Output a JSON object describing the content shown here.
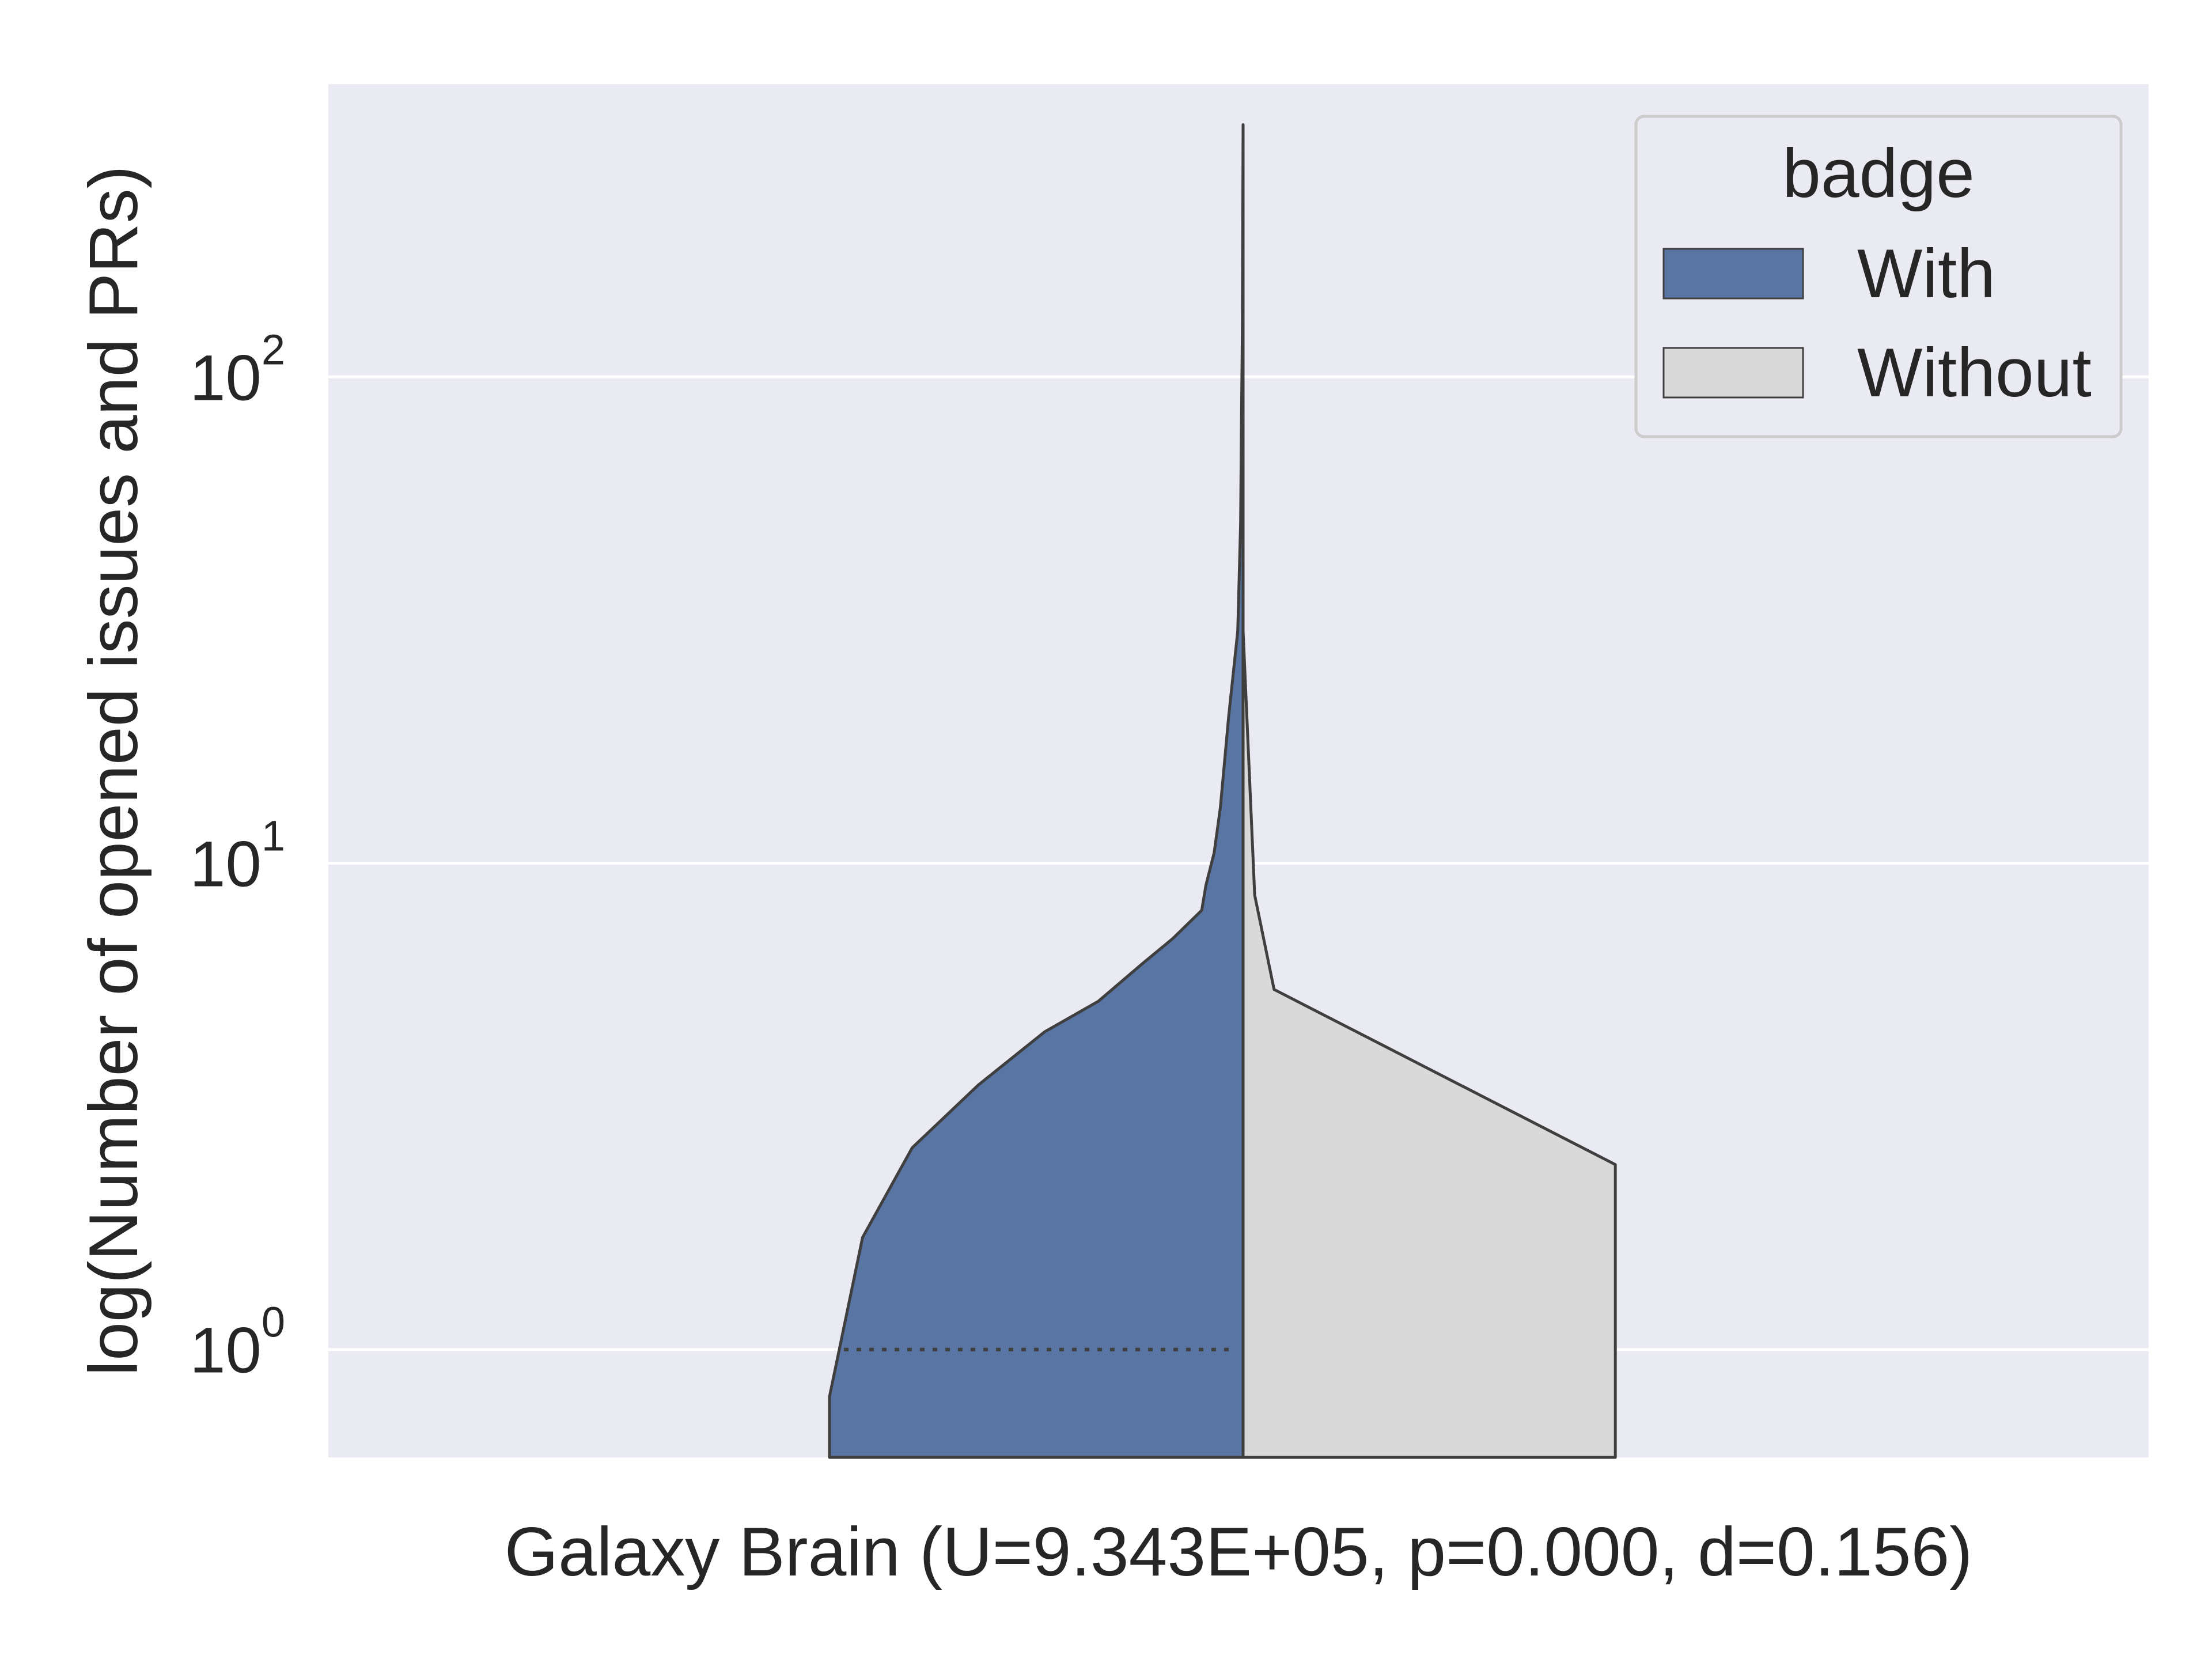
{
  "chart_data": {
    "type": "violin",
    "split": true,
    "xlabel": "Galaxy Brain (U=9.343E+05, p=0.000, d=0.156)",
    "ylabel": "log(Number of opened issues and PRs)",
    "yscale": "log",
    "ylim": [
      0.6,
      400
    ],
    "y_ticks": [
      {
        "value": 1,
        "base": "10",
        "exp": "0"
      },
      {
        "value": 10,
        "base": "10",
        "exp": "1"
      },
      {
        "value": 100,
        "base": "10",
        "exp": "2"
      }
    ],
    "grid": true,
    "legend": {
      "title": "badge",
      "placement": "top-right",
      "entries": [
        {
          "label": "With",
          "color": "#5975a4"
        },
        {
          "label": "Without",
          "color": "#d9d9d9"
        }
      ]
    },
    "series": [
      {
        "name": "With",
        "side": "left",
        "color": "#5975a4",
        "median": 1.0,
        "profile": [
          {
            "y": 0.6,
            "density": 1.0
          },
          {
            "y": 0.8,
            "density": 1.0
          },
          {
            "y": 1.7,
            "density": 0.92
          },
          {
            "y": 2.6,
            "density": 0.8
          },
          {
            "y": 3.5,
            "density": 0.64
          },
          {
            "y": 4.5,
            "density": 0.48
          },
          {
            "y": 5.2,
            "density": 0.35
          },
          {
            "y": 6.2,
            "density": 0.245
          },
          {
            "y": 7.0,
            "density": 0.17
          },
          {
            "y": 8.0,
            "density": 0.1
          },
          {
            "y": 9.0,
            "density": 0.09
          },
          {
            "y": 10.5,
            "density": 0.07
          },
          {
            "y": 13,
            "density": 0.055
          },
          {
            "y": 20,
            "density": 0.035
          },
          {
            "y": 30,
            "density": 0.013
          },
          {
            "y": 50,
            "density": 0.006
          },
          {
            "y": 80,
            "density": 0.004
          },
          {
            "y": 120,
            "density": 0.002
          },
          {
            "y": 330,
            "density": 0.0
          }
        ]
      },
      {
        "name": "Without",
        "side": "right",
        "color": "#d9d9d9",
        "profile": [
          {
            "y": 0.6,
            "density": 0.9
          },
          {
            "y": 2.4,
            "density": 0.9
          },
          {
            "y": 5.5,
            "density": 0.075
          },
          {
            "y": 8.6,
            "density": 0.028
          },
          {
            "y": 30,
            "density": 0.0
          }
        ]
      }
    ]
  }
}
